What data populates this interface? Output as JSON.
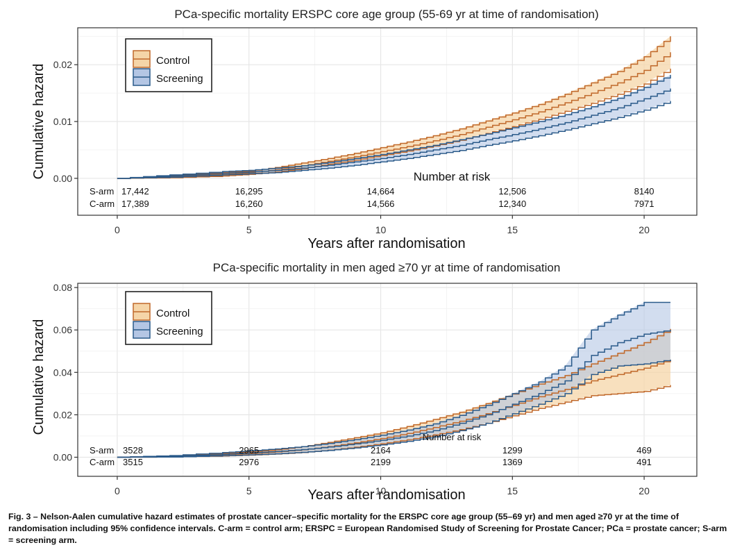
{
  "colors": {
    "control_line": "#c0682a",
    "control_fill": "#f5d5a8",
    "screening_line": "#2a5a8a",
    "screening_fill": "#b4c6e4",
    "overlap_fill": "#c8c8c8",
    "grid": "#e6e6e6",
    "frame": "#333333"
  },
  "chart_data": [
    {
      "type": "line",
      "title": "PCa-specific mortality ERSPC core age group (55-69 yr at time of randomisation)",
      "xlabel": "Years after randomisation",
      "ylabel": "Cumulative hazard",
      "xlim": [
        -1.5,
        22
      ],
      "ylim": [
        -0.0065,
        0.0265
      ],
      "xticks": [
        0,
        5,
        10,
        15,
        20
      ],
      "yticks": [
        0.0,
        0.01,
        0.02
      ],
      "ytick_labels": [
        "0.00",
        "0.01",
        "0.02"
      ],
      "legend": {
        "position": "top-left",
        "items": [
          "Control",
          "Screening"
        ]
      },
      "series": [
        {
          "name": "Control",
          "x": [
            0,
            2,
            4,
            5,
            6,
            7,
            8,
            9,
            10,
            11,
            12,
            13,
            14,
            15,
            16,
            17,
            18,
            19,
            20,
            21
          ],
          "estimate": [
            0,
            0.0003,
            0.0007,
            0.001,
            0.0015,
            0.0022,
            0.003,
            0.0038,
            0.0047,
            0.0056,
            0.0066,
            0.0077,
            0.009,
            0.0103,
            0.0117,
            0.0133,
            0.015,
            0.0168,
            0.019,
            0.0222
          ],
          "lower": [
            0,
            0.0001,
            0.0004,
            0.0007,
            0.0011,
            0.0017,
            0.0025,
            0.0032,
            0.004,
            0.0048,
            0.0057,
            0.0067,
            0.0079,
            0.0091,
            0.0104,
            0.0118,
            0.0132,
            0.0148,
            0.0166,
            0.0193
          ],
          "upper": [
            0,
            0.0005,
            0.001,
            0.0013,
            0.0019,
            0.0027,
            0.0035,
            0.0044,
            0.0054,
            0.0064,
            0.0075,
            0.0087,
            0.0101,
            0.0115,
            0.013,
            0.0148,
            0.0168,
            0.0188,
            0.0214,
            0.025
          ]
        },
        {
          "name": "Screening",
          "x": [
            0,
            2,
            4,
            5,
            6,
            7,
            8,
            9,
            10,
            11,
            12,
            13,
            14,
            15,
            16,
            17,
            18,
            19,
            20,
            21
          ],
          "estimate": [
            0,
            0.0004,
            0.0009,
            0.0011,
            0.0014,
            0.0018,
            0.0023,
            0.0029,
            0.0035,
            0.0042,
            0.005,
            0.0058,
            0.0068,
            0.0077,
            0.0087,
            0.0098,
            0.0111,
            0.0124,
            0.014,
            0.0158
          ],
          "lower": [
            0,
            0.0002,
            0.0006,
            0.0008,
            0.001,
            0.0014,
            0.0018,
            0.0023,
            0.0029,
            0.0035,
            0.0042,
            0.0049,
            0.0058,
            0.0066,
            0.0075,
            0.0085,
            0.0096,
            0.0107,
            0.012,
            0.0136
          ],
          "upper": [
            0,
            0.0006,
            0.0012,
            0.0014,
            0.0018,
            0.0022,
            0.0028,
            0.0035,
            0.0042,
            0.005,
            0.0058,
            0.0068,
            0.0078,
            0.0089,
            0.01,
            0.0112,
            0.0126,
            0.0141,
            0.016,
            0.0182
          ]
        }
      ],
      "risk_table": {
        "title": "Number at risk",
        "rows": [
          {
            "label": "S-arm",
            "values": [
              "17,442",
              "16,295",
              "14,664",
              "12,506",
              "8140"
            ]
          },
          {
            "label": "C-arm",
            "values": [
              "17,389",
              "16,260",
              "14,566",
              "12,340",
              "7971"
            ]
          }
        ],
        "x": [
          0,
          5,
          10,
          15,
          20
        ]
      }
    },
    {
      "type": "line",
      "title": "PCa-specific mortality in men aged ≥70 yr at time of randomisation",
      "xlabel": "Years after randomisation",
      "ylabel": "Cumulative hazard",
      "xlim": [
        -1.5,
        22
      ],
      "ylim": [
        -0.009,
        0.082
      ],
      "xticks": [
        0,
        5,
        10,
        15,
        20
      ],
      "yticks": [
        0.0,
        0.02,
        0.04,
        0.06,
        0.08
      ],
      "ytick_labels": [
        "0.00",
        "0.02",
        "0.04",
        "0.06",
        "0.08"
      ],
      "legend": {
        "position": "top-left",
        "items": [
          "Control",
          "Screening"
        ]
      },
      "series": [
        {
          "name": "Control",
          "x": [
            0,
            2,
            4,
            5,
            6,
            7,
            8,
            9,
            10,
            11,
            12,
            13,
            14,
            15,
            16,
            17,
            18,
            19,
            20,
            21
          ],
          "estimate": [
            0,
            0.0003,
            0.0012,
            0.0017,
            0.0025,
            0.0035,
            0.005,
            0.0068,
            0.0088,
            0.0112,
            0.014,
            0.017,
            0.0205,
            0.0245,
            0.0285,
            0.032,
            0.036,
            0.039,
            0.042,
            0.046
          ],
          "lower": [
            0,
            0.0001,
            0.0006,
            0.001,
            0.0015,
            0.0022,
            0.0033,
            0.0047,
            0.0063,
            0.0082,
            0.0105,
            0.013,
            0.016,
            0.0195,
            0.023,
            0.026,
            0.029,
            0.03,
            0.031,
            0.034
          ],
          "upper": [
            0,
            0.0006,
            0.0019,
            0.0025,
            0.0035,
            0.005,
            0.007,
            0.0092,
            0.0115,
            0.0145,
            0.0178,
            0.0212,
            0.0253,
            0.0298,
            0.0345,
            0.0385,
            0.044,
            0.049,
            0.054,
            0.0605
          ]
        },
        {
          "name": "Screening",
          "x": [
            0,
            2,
            4,
            5,
            6,
            7,
            8,
            9,
            10,
            11,
            12,
            13,
            14,
            15,
            16,
            17,
            18,
            19,
            20,
            21
          ],
          "estimate": [
            0,
            0.0004,
            0.0014,
            0.002,
            0.0027,
            0.0036,
            0.0048,
            0.0063,
            0.008,
            0.01,
            0.0125,
            0.016,
            0.02,
            0.025,
            0.03,
            0.036,
            0.048,
            0.054,
            0.058,
            0.06
          ],
          "lower": [
            0,
            0.0001,
            0.0007,
            0.0011,
            0.0016,
            0.0023,
            0.0032,
            0.0044,
            0.0058,
            0.0075,
            0.0096,
            0.0125,
            0.016,
            0.0205,
            0.025,
            0.03,
            0.039,
            0.043,
            0.044,
            0.046
          ],
          "upper": [
            0,
            0.0008,
            0.0022,
            0.003,
            0.0039,
            0.005,
            0.0065,
            0.0083,
            0.0104,
            0.0128,
            0.0157,
            0.0197,
            0.0245,
            0.03,
            0.0355,
            0.043,
            0.06,
            0.067,
            0.073,
            0.073
          ]
        }
      ],
      "risk_table": {
        "title": "Number at risk",
        "rows": [
          {
            "label": "S-arm",
            "values": [
              "3528",
              "2965",
              "2164",
              "1299",
              "469"
            ]
          },
          {
            "label": "C-arm",
            "values": [
              "3515",
              "2976",
              "2199",
              "1369",
              "491"
            ]
          }
        ],
        "x": [
          0,
          5,
          10,
          15,
          20
        ]
      }
    }
  ],
  "caption": {
    "lead": "Fig. 3 – Nelson-Aalen cumulative hazard estimates of prostate cancer–specific mortality for the ERSPC core age group (55–69 yr) and men aged ≥70 yr at the time of randomisation including 95% confidence intervals. C-arm = control arm; ERSPC = European Randomised Study of Screening for Prostate Cancer; PCa = prostate cancer; S-arm = screening arm."
  }
}
